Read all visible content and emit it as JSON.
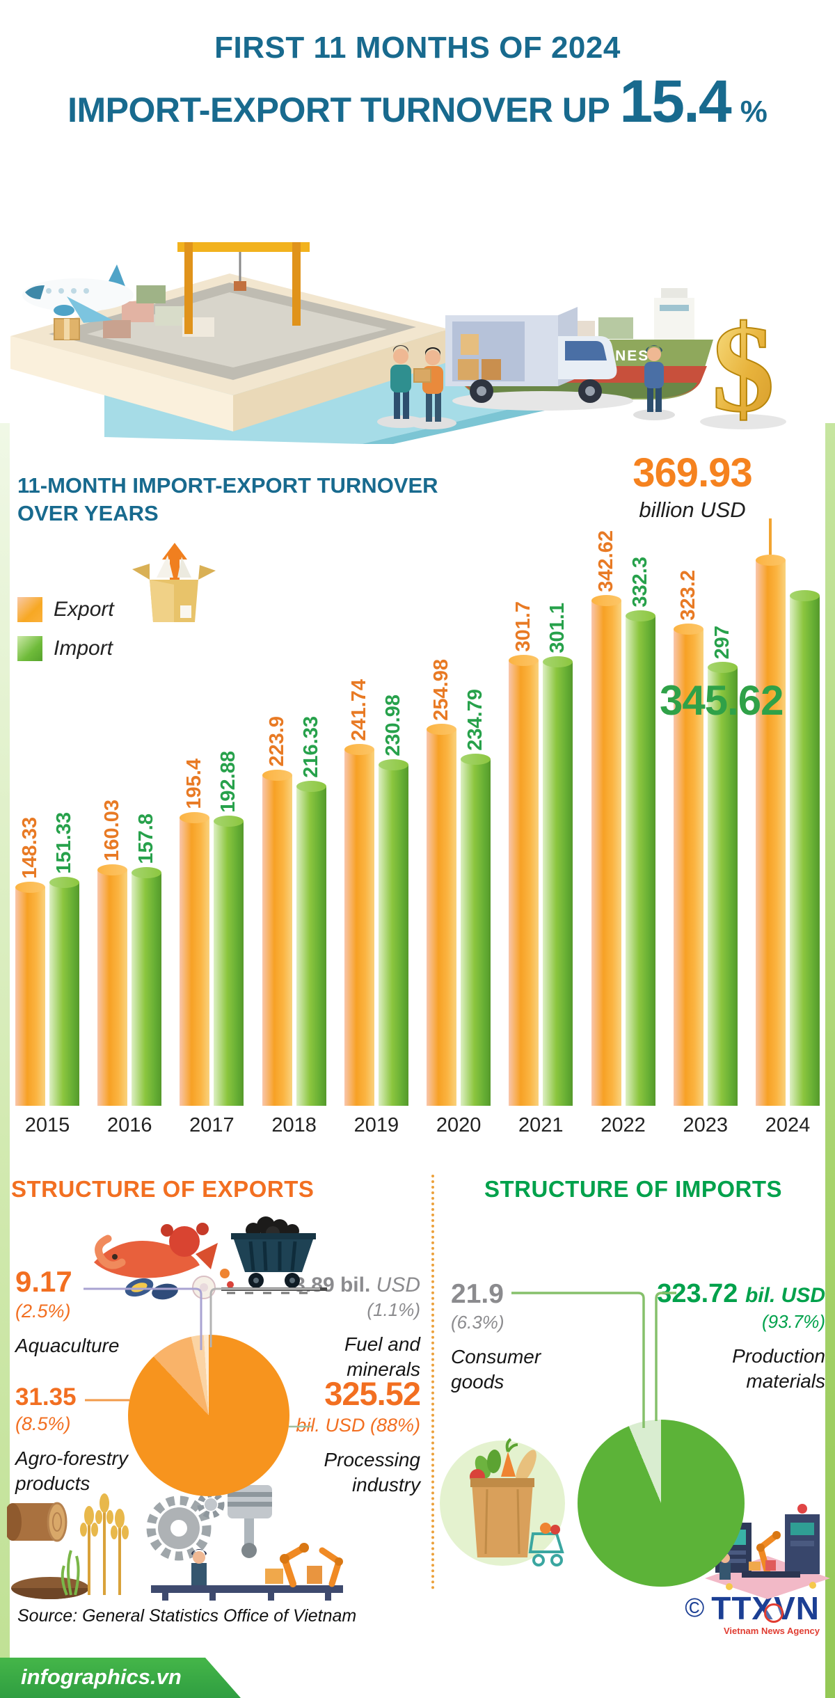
{
  "page_title": "First 11 months of 2024 import-export turnover infographic",
  "colors": {
    "teal_heading": "#186A8E",
    "accent_orange": "#F5821F",
    "accent_green": "#00A14B",
    "bar_export": "#F7A125",
    "bar_import": "#6FBB3A",
    "gray_label": "#8B8B8E",
    "divider_orange": "#ECA13C",
    "footer_green": "#3AA93F",
    "agency_blue": "#1C3F94",
    "agency_red": "#E03C31"
  },
  "header": {
    "line1": "FIRST 11 MONTHS OF 2024",
    "line2": "IMPORT-EXPORT TURNOVER UP",
    "percent": "15.4",
    "percent_sign": "%"
  },
  "hero": {
    "ship_name": "OCEANIC LINES",
    "dollar_sign": "$"
  },
  "chart": {
    "title_line1": "11-MONTH IMPORT-EXPORT TURNOVER",
    "title_line2": "OVER YEARS",
    "highlight_export_value": "369.93",
    "highlight_unit": "billion USD",
    "highlight_import_value": "345.62"
  },
  "chart_data": [
    {
      "type": "bar",
      "title": "11-MONTH IMPORT-EXPORT TURNOVER OVER YEARS",
      "unit": "billion USD",
      "categories": [
        "2015",
        "2016",
        "2017",
        "2018",
        "2019",
        "2020",
        "2021",
        "2022",
        "2023",
        "2024"
      ],
      "series": [
        {
          "name": "Export",
          "color": "#F7A125",
          "values": [
            148.33,
            160.03,
            195.4,
            223.9,
            241.74,
            254.98,
            301.7,
            342.62,
            323.2,
            369.93
          ]
        },
        {
          "name": "Import",
          "color": "#6FBB3A",
          "values": [
            151.33,
            157.8,
            192.88,
            216.33,
            230.98,
            234.79,
            301.1,
            332.3,
            297,
            345.62
          ]
        }
      ],
      "ylim": [
        0,
        369.93
      ],
      "grid": false,
      "legend_position": "top-left",
      "notes": "value labels rotated vertically above each bar; 2024 values shown as large callouts 369.93 billion USD (export) and 345.62 (import)"
    },
    {
      "type": "pie",
      "title": "STRUCTURE OF EXPORTS",
      "unit": "bil. USD",
      "labels": [
        "Processing industry",
        "Agro-forestry products",
        "Aquaculture",
        "Fuel and minerals"
      ],
      "values": [
        88,
        8.5,
        2.5,
        1.1
      ],
      "amounts": [
        325.52,
        31.35,
        9.17,
        3.89
      ],
      "colors": [
        "#F7941E",
        "#F9B369",
        "#FBD4A4",
        "#FDEBD3"
      ]
    },
    {
      "type": "pie",
      "title": "STRUCTURE OF IMPORTS",
      "unit": "bil. USD",
      "labels": [
        "Production materials",
        "Consumer goods"
      ],
      "values": [
        93.7,
        6.3
      ],
      "amounts": [
        323.72,
        21.9
      ],
      "colors": [
        "#5CB338",
        "#D9EDD0"
      ]
    }
  ],
  "exports": {
    "heading": "STRUCTURE OF EXPORTS",
    "aquaculture": {
      "value": "9.17",
      "pct": "(2.5%)",
      "label": "Aquaculture"
    },
    "fuel": {
      "value": "3.89",
      "unit": "bil.",
      "currency": "USD",
      "pct": "(1.1%)",
      "label1": "Fuel and",
      "label2": "minerals"
    },
    "agro": {
      "value": "31.35",
      "pct": "(8.5%)",
      "label1": "Agro-forestry",
      "label2": "products"
    },
    "processing": {
      "value": "325.52",
      "unit": "bil. USD",
      "pct": "(88%)",
      "label1": "Processing",
      "label2": "industry"
    }
  },
  "imports": {
    "heading": "STRUCTURE OF IMPORTS",
    "consumer": {
      "value": "21.9",
      "pct": "(6.3%)",
      "label1": "Consumer",
      "label2": "goods"
    },
    "production": {
      "value": "323.72",
      "unit": "bil. USD",
      "pct": "(93.7%)",
      "label1": "Production",
      "label2": "materials"
    }
  },
  "source": {
    "text": "Source: General Statistics Office of Vietnam"
  },
  "footer": {
    "site": "infographics.vn",
    "copyright": "©",
    "agency": "TTXVN",
    "agency_subtitle": "Vietnam News Agency"
  }
}
